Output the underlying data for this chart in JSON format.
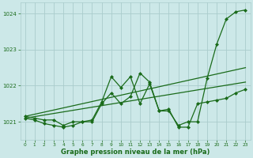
{
  "title": "",
  "xlabel": "Graphe pression niveau de la mer (hPa)",
  "ylabel": "",
  "background_color": "#cce8e8",
  "grid_color": "#aacccc",
  "line_color": "#1a6b1a",
  "xlim": [
    -0.5,
    23.5
  ],
  "ylim": [
    1020.5,
    1024.3
  ],
  "yticks": [
    1021,
    1022,
    1023,
    1024
  ],
  "xticks": [
    0,
    1,
    2,
    3,
    4,
    5,
    6,
    7,
    8,
    9,
    10,
    11,
    12,
    13,
    14,
    15,
    16,
    17,
    18,
    19,
    20,
    21,
    22,
    23
  ],
  "series": [
    {
      "x": [
        0,
        23
      ],
      "y": [
        1021.1,
        1022.1
      ],
      "marker": null,
      "markersize": 0,
      "linewidth": 0.9
    },
    {
      "x": [
        0,
        23
      ],
      "y": [
        1021.15,
        1022.5
      ],
      "marker": null,
      "markersize": 0,
      "linewidth": 0.9
    },
    {
      "x": [
        0,
        1,
        2,
        3,
        4,
        5,
        6,
        7,
        8,
        9,
        10,
        11,
        12,
        13,
        14,
        15,
        16,
        17,
        18,
        19,
        20,
        21,
        22,
        23
      ],
      "y": [
        1021.1,
        1021.05,
        1020.95,
        1020.9,
        1020.85,
        1020.9,
        1021.0,
        1021.05,
        1021.55,
        1022.25,
        1021.95,
        1022.25,
        1021.5,
        1022.05,
        1021.3,
        1021.35,
        1020.85,
        1020.85,
        1021.5,
        1021.55,
        1021.6,
        1021.65,
        1021.8,
        1021.9
      ],
      "marker": "D",
      "markersize": 2.0,
      "linewidth": 0.9
    },
    {
      "x": [
        0,
        1,
        2,
        3,
        4,
        5,
        6,
        7,
        8,
        9,
        10,
        11,
        12,
        13,
        14,
        15,
        16,
        17,
        18,
        19,
        20,
        21,
        22,
        23
      ],
      "y": [
        1021.15,
        1021.1,
        1021.05,
        1021.05,
        1020.9,
        1021.0,
        1021.0,
        1021.0,
        1021.5,
        1021.8,
        1021.5,
        1021.7,
        1022.35,
        1022.1,
        1021.3,
        1021.3,
        1020.9,
        1021.0,
        1021.0,
        1022.2,
        1023.15,
        1023.85,
        1024.05,
        1024.1
      ],
      "marker": "D",
      "markersize": 2.0,
      "linewidth": 0.9
    }
  ]
}
